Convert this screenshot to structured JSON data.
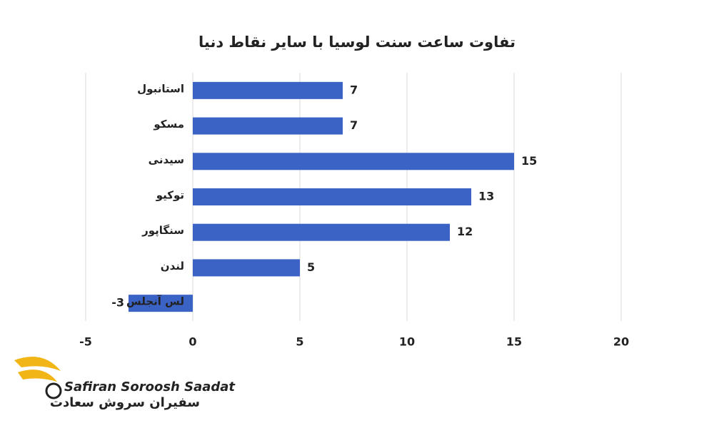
{
  "chart_data": {
    "type": "bar",
    "orientation": "horizontal",
    "title": "تفاوت ساعت سنت لوسیا با سایر نقاط دنیا",
    "categories": [
      "استانبول",
      "مسکو",
      "سیدنی",
      "توکیو",
      "سنگاپور",
      "لندن",
      "لس آنجلس"
    ],
    "values": [
      7,
      7,
      15,
      13,
      12,
      5,
      -3
    ],
    "color": "#3b63c6",
    "xlim": [
      -5,
      20
    ],
    "xticks": [
      -5,
      0,
      5,
      10,
      15,
      20
    ],
    "grid": true
  },
  "logo": {
    "name_en": "Safiran Soroosh Saadat",
    "name_fa": "سفیران سروش سعادت"
  }
}
